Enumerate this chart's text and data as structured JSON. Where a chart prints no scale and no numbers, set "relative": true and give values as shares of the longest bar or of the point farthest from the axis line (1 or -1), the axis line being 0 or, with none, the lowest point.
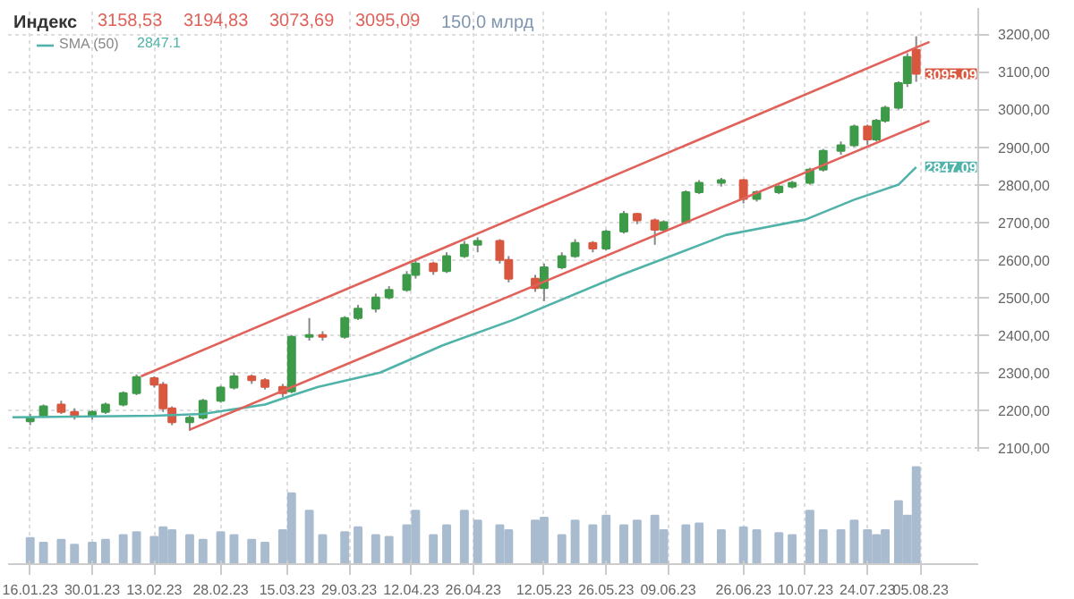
{
  "chart_data": [
    {
      "type": "candlestick",
      "title": "Индекс",
      "x": [
        "2023-01-16",
        "2023-01-19",
        "2023-01-23",
        "2023-01-26",
        "2023-01-30",
        "2023-02-02",
        "2023-02-06",
        "2023-02-09",
        "2023-02-13",
        "2023-02-15",
        "2023-02-17",
        "2023-02-21",
        "2023-02-24",
        "2023-02-28",
        "2023-03-03",
        "2023-03-07",
        "2023-03-10",
        "2023-03-14",
        "2023-03-16",
        "2023-03-20",
        "2023-03-23",
        "2023-03-28",
        "2023-03-31",
        "2023-04-04",
        "2023-04-07",
        "2023-04-11",
        "2023-04-13",
        "2023-04-17",
        "2023-04-20",
        "2023-04-24",
        "2023-04-27",
        "2023-05-02",
        "2023-05-04",
        "2023-05-10",
        "2023-05-12",
        "2023-05-16",
        "2023-05-19",
        "2023-05-23",
        "2023-05-26",
        "2023-05-30",
        "2023-06-02",
        "2023-06-06",
        "2023-06-08",
        "2023-06-13",
        "2023-06-16",
        "2023-06-21",
        "2023-06-26",
        "2023-06-29",
        "2023-07-04",
        "2023-07-07",
        "2023-07-11",
        "2023-07-14",
        "2023-07-18",
        "2023-07-21",
        "2023-07-24",
        "2023-07-26",
        "2023-07-28",
        "2023-07-31",
        "2023-08-02",
        "2023-08-04"
      ],
      "ohlc": [
        [
          2170,
          2190,
          2160,
          2180
        ],
        [
          2185,
          2215,
          2180,
          2210
        ],
        [
          2215,
          2225,
          2190,
          2195
        ],
        [
          2195,
          2205,
          2175,
          2185
        ],
        [
          2185,
          2200,
          2175,
          2195
        ],
        [
          2195,
          2220,
          2190,
          2215
        ],
        [
          2215,
          2250,
          2210,
          2245
        ],
        [
          2245,
          2295,
          2240,
          2288
        ],
        [
          2285,
          2290,
          2260,
          2268
        ],
        [
          2268,
          2275,
          2195,
          2205
        ],
        [
          2205,
          2210,
          2160,
          2168
        ],
        [
          2168,
          2185,
          2145,
          2180
        ],
        [
          2180,
          2230,
          2175,
          2225
        ],
        [
          2225,
          2265,
          2220,
          2260
        ],
        [
          2260,
          2300,
          2255,
          2290
        ],
        [
          2290,
          2295,
          2270,
          2280
        ],
        [
          2280,
          2285,
          2255,
          2262
        ],
        [
          2262,
          2270,
          2235,
          2245
        ],
        [
          2250,
          2400,
          2245,
          2395
        ],
        [
          2395,
          2445,
          2385,
          2400
        ],
        [
          2400,
          2410,
          2385,
          2395
        ],
        [
          2395,
          2450,
          2390,
          2445
        ],
        [
          2445,
          2480,
          2440,
          2470
        ],
        [
          2470,
          2510,
          2460,
          2500
        ],
        [
          2500,
          2530,
          2495,
          2520
        ],
        [
          2520,
          2570,
          2515,
          2560
        ],
        [
          2560,
          2600,
          2550,
          2590
        ],
        [
          2590,
          2595,
          2560,
          2570
        ],
        [
          2570,
          2620,
          2565,
          2610
        ],
        [
          2610,
          2650,
          2605,
          2640
        ],
        [
          2640,
          2660,
          2620,
          2650
        ],
        [
          2650,
          2655,
          2590,
          2600
        ],
        [
          2600,
          2610,
          2540,
          2550
        ],
        [
          2550,
          2560,
          2515,
          2525
        ],
        [
          2525,
          2590,
          2490,
          2580
        ],
        [
          2580,
          2620,
          2575,
          2610
        ],
        [
          2610,
          2655,
          2605,
          2645
        ],
        [
          2645,
          2650,
          2620,
          2630
        ],
        [
          2630,
          2680,
          2625,
          2675
        ],
        [
          2675,
          2730,
          2670,
          2722
        ],
        [
          2722,
          2725,
          2695,
          2705
        ],
        [
          2705,
          2710,
          2640,
          2680
        ],
        [
          2680,
          2705,
          2675,
          2700
        ],
        [
          2700,
          2785,
          2695,
          2780
        ],
        [
          2780,
          2812,
          2775,
          2805
        ],
        [
          2805,
          2818,
          2795,
          2812
        ],
        [
          2812,
          2815,
          2750,
          2762
        ],
        [
          2762,
          2785,
          2755,
          2780
        ],
        [
          2780,
          2800,
          2775,
          2795
        ],
        [
          2795,
          2810,
          2790,
          2805
        ],
        [
          2805,
          2845,
          2800,
          2840
        ],
        [
          2840,
          2895,
          2835,
          2890
        ],
        [
          2890,
          2915,
          2880,
          2905
        ],
        [
          2905,
          2960,
          2900,
          2955
        ],
        [
          2955,
          2960,
          2905,
          2920
        ],
        [
          2920,
          2975,
          2915,
          2970
        ],
        [
          2970,
          3010,
          2965,
          3005
        ],
        [
          3005,
          3075,
          3000,
          3070
        ],
        [
          3070,
          3150,
          3060,
          3140
        ],
        [
          3158.53,
          3194.83,
          3073.69,
          3095.09
        ]
      ],
      "colors": [
        "#3c9a48",
        "#3c9a48",
        "#d9573f",
        "#d9573f",
        "#3c9a48",
        "#3c9a48",
        "#3c9a48",
        "#3c9a48",
        "#d9573f",
        "#d9573f",
        "#d9573f",
        "#3c9a48",
        "#3c9a48",
        "#3c9a48",
        "#3c9a48",
        "#d9573f",
        "#d9573f",
        "#d9573f",
        "#3c9a48",
        "#3c9a48",
        "#d9573f",
        "#3c9a48",
        "#3c9a48",
        "#3c9a48",
        "#3c9a48",
        "#3c9a48",
        "#3c9a48",
        "#d9573f",
        "#3c9a48",
        "#3c9a48",
        "#3c9a48",
        "#d9573f",
        "#d9573f",
        "#d9573f",
        "#3c9a48",
        "#3c9a48",
        "#3c9a48",
        "#d9573f",
        "#3c9a48",
        "#3c9a48",
        "#d9573f",
        "#d9573f",
        "#3c9a48",
        "#3c9a48",
        "#3c9a48",
        "#3c9a48",
        "#d9573f",
        "#3c9a48",
        "#3c9a48",
        "#3c9a48",
        "#3c9a48",
        "#3c9a48",
        "#3c9a48",
        "#3c9a48",
        "#d9573f",
        "#3c9a48",
        "#3c9a48",
        "#3c9a48",
        "#3c9a48",
        "#d9573f"
      ],
      "series": [
        {
          "type": "line",
          "name": "SMA (50)",
          "color": "#4fb3a9",
          "x": [
            "2023-01-12",
            "2023-02-13",
            "2023-02-24",
            "2023-03-10",
            "2023-03-15",
            "2023-03-22",
            "2023-04-05",
            "2023-04-19",
            "2023-05-05",
            "2023-05-29",
            "2023-06-22",
            "2023-07-10",
            "2023-07-21",
            "2023-07-31",
            "2023-08-04"
          ],
          "values": [
            2181,
            2185,
            2190,
            2215,
            2235,
            2262,
            2300,
            2372,
            2440,
            2558,
            2666,
            2707,
            2760,
            2800,
            2847
          ]
        },
        {
          "type": "line",
          "color": "#e0625a",
          "x": [
            "2023-02-10",
            "2023-08-07"
          ],
          "values": [
            2290,
            3180
          ]
        },
        {
          "type": "line",
          "color": "#e0625a",
          "x": [
            "2023-02-21",
            "2023-08-07"
          ],
          "values": [
            2148,
            2970
          ]
        }
      ],
      "xlim": [
        "2023-01-11",
        "2023-08-18"
      ],
      "xticks": [
        {
          "value": "2023-01-16",
          "label": null
        },
        {
          "value": "2023-01-30",
          "label": null
        },
        {
          "value": "2023-02-13",
          "label": null
        },
        {
          "value": "2023-02-28",
          "label": null
        },
        {
          "value": "2023-03-15",
          "label": null
        },
        {
          "value": "2023-03-29",
          "label": null
        },
        {
          "value": "2023-04-12",
          "label": null
        },
        {
          "value": "2023-04-26",
          "label": null
        },
        {
          "value": "2023-05-12",
          "label": null
        },
        {
          "value": "2023-05-26",
          "label": null
        },
        {
          "value": "2023-06-09",
          "label": null
        },
        {
          "value": "2023-06-26",
          "label": null
        },
        {
          "value": "2023-07-10",
          "label": null
        },
        {
          "value": "2023-07-24",
          "label": null
        },
        {
          "value": "2023-08-05",
          "label": null
        }
      ],
      "ylim": [
        2090,
        3270
      ],
      "yticks": [
        {
          "value": 2100,
          "label": "2100,00"
        },
        {
          "value": 2200,
          "label": "2200,00"
        },
        {
          "value": 2300,
          "label": "2300,00"
        },
        {
          "value": 2400,
          "label": "2400,00"
        },
        {
          "value": 2500,
          "label": "2500,00"
        },
        {
          "value": 2600,
          "label": "2600,00"
        },
        {
          "value": 2700,
          "label": "2700,00"
        },
        {
          "value": 2800,
          "label": "2800,00"
        },
        {
          "value": 2900,
          "label": "2900,00"
        },
        {
          "value": 3000,
          "label": "3000,00"
        },
        {
          "value": 3100,
          "label": "3100,00"
        },
        {
          "value": 3200,
          "label": "3200,00"
        }
      ],
      "grid": true,
      "legend": "top left",
      "tick_labels": "y",
      "annotations": [
        "3158,53",
        "3194,83",
        "3073,69",
        "3095,09",
        "150,0 млрд",
        "2847.1",
        {
          "text": "3095,09",
          "x": "2023-08-04",
          "y": 3095.09
        },
        {
          "text": "2847,09",
          "x": "2023-08-04",
          "y": 2847.09
        }
      ]
    },
    {
      "type": "bar",
      "relative": true,
      "color": "#a9bccf",
      "grid": "x",
      "xlim": [
        "2023-01-11",
        "2023-08-18"
      ],
      "xticks": [
        {
          "value": "2023-01-16",
          "label": "16.01.23"
        },
        {
          "value": "2023-01-30",
          "label": "30.01.23"
        },
        {
          "value": "2023-02-13",
          "label": "13.02.23"
        },
        {
          "value": "2023-02-28",
          "label": "28.02.23"
        },
        {
          "value": "2023-03-15",
          "label": "15.03.23"
        },
        {
          "value": "2023-03-29",
          "label": "29.03.23"
        },
        {
          "value": "2023-04-12",
          "label": "12.04.23"
        },
        {
          "value": "2023-04-26",
          "label": "26.04.23"
        },
        {
          "value": "2023-05-12",
          "label": "12.05.23"
        },
        {
          "value": "2023-05-26",
          "label": "26.05.23"
        },
        {
          "value": "2023-06-09",
          "label": "09.06.23"
        },
        {
          "value": "2023-06-26",
          "label": "26.06.23"
        },
        {
          "value": "2023-07-10",
          "label": "10.07.23"
        },
        {
          "value": "2023-07-24",
          "label": "24.07.23"
        },
        {
          "value": "2023-08-05",
          "label": "05.08.23"
        }
      ],
      "x": [
        "2023-01-16",
        "2023-01-19",
        "2023-01-23",
        "2023-01-26",
        "2023-01-30",
        "2023-02-02",
        "2023-02-06",
        "2023-02-09",
        "2023-02-13",
        "2023-02-15",
        "2023-02-17",
        "2023-02-21",
        "2023-02-24",
        "2023-02-28",
        "2023-03-03",
        "2023-03-07",
        "2023-03-10",
        "2023-03-14",
        "2023-03-16",
        "2023-03-20",
        "2023-03-23",
        "2023-03-28",
        "2023-03-31",
        "2023-04-04",
        "2023-04-07",
        "2023-04-11",
        "2023-04-13",
        "2023-04-17",
        "2023-04-20",
        "2023-04-24",
        "2023-04-27",
        "2023-05-02",
        "2023-05-04",
        "2023-05-10",
        "2023-05-12",
        "2023-05-16",
        "2023-05-19",
        "2023-05-23",
        "2023-05-26",
        "2023-05-30",
        "2023-06-02",
        "2023-06-06",
        "2023-06-08",
        "2023-06-13",
        "2023-06-16",
        "2023-06-21",
        "2023-06-26",
        "2023-06-29",
        "2023-07-04",
        "2023-07-07",
        "2023-07-11",
        "2023-07-14",
        "2023-07-18",
        "2023-07-21",
        "2023-07-24",
        "2023-07-26",
        "2023-07-28",
        "2023-07-31",
        "2023-08-02",
        "2023-08-04"
      ],
      "values": [
        0.27,
        0.22,
        0.25,
        0.2,
        0.22,
        0.25,
        0.3,
        0.33,
        0.28,
        0.38,
        0.35,
        0.3,
        0.25,
        0.33,
        0.3,
        0.25,
        0.22,
        0.35,
        0.73,
        0.55,
        0.3,
        0.33,
        0.38,
        0.3,
        0.28,
        0.4,
        0.55,
        0.3,
        0.4,
        0.55,
        0.45,
        0.4,
        0.35,
        0.45,
        0.48,
        0.3,
        0.45,
        0.4,
        0.5,
        0.4,
        0.45,
        0.5,
        0.35,
        0.4,
        0.42,
        0.35,
        0.38,
        0.35,
        0.32,
        0.3,
        0.55,
        0.35,
        0.35,
        0.45,
        0.35,
        0.3,
        0.35,
        0.65,
        0.5,
        1
      ]
    }
  ]
}
